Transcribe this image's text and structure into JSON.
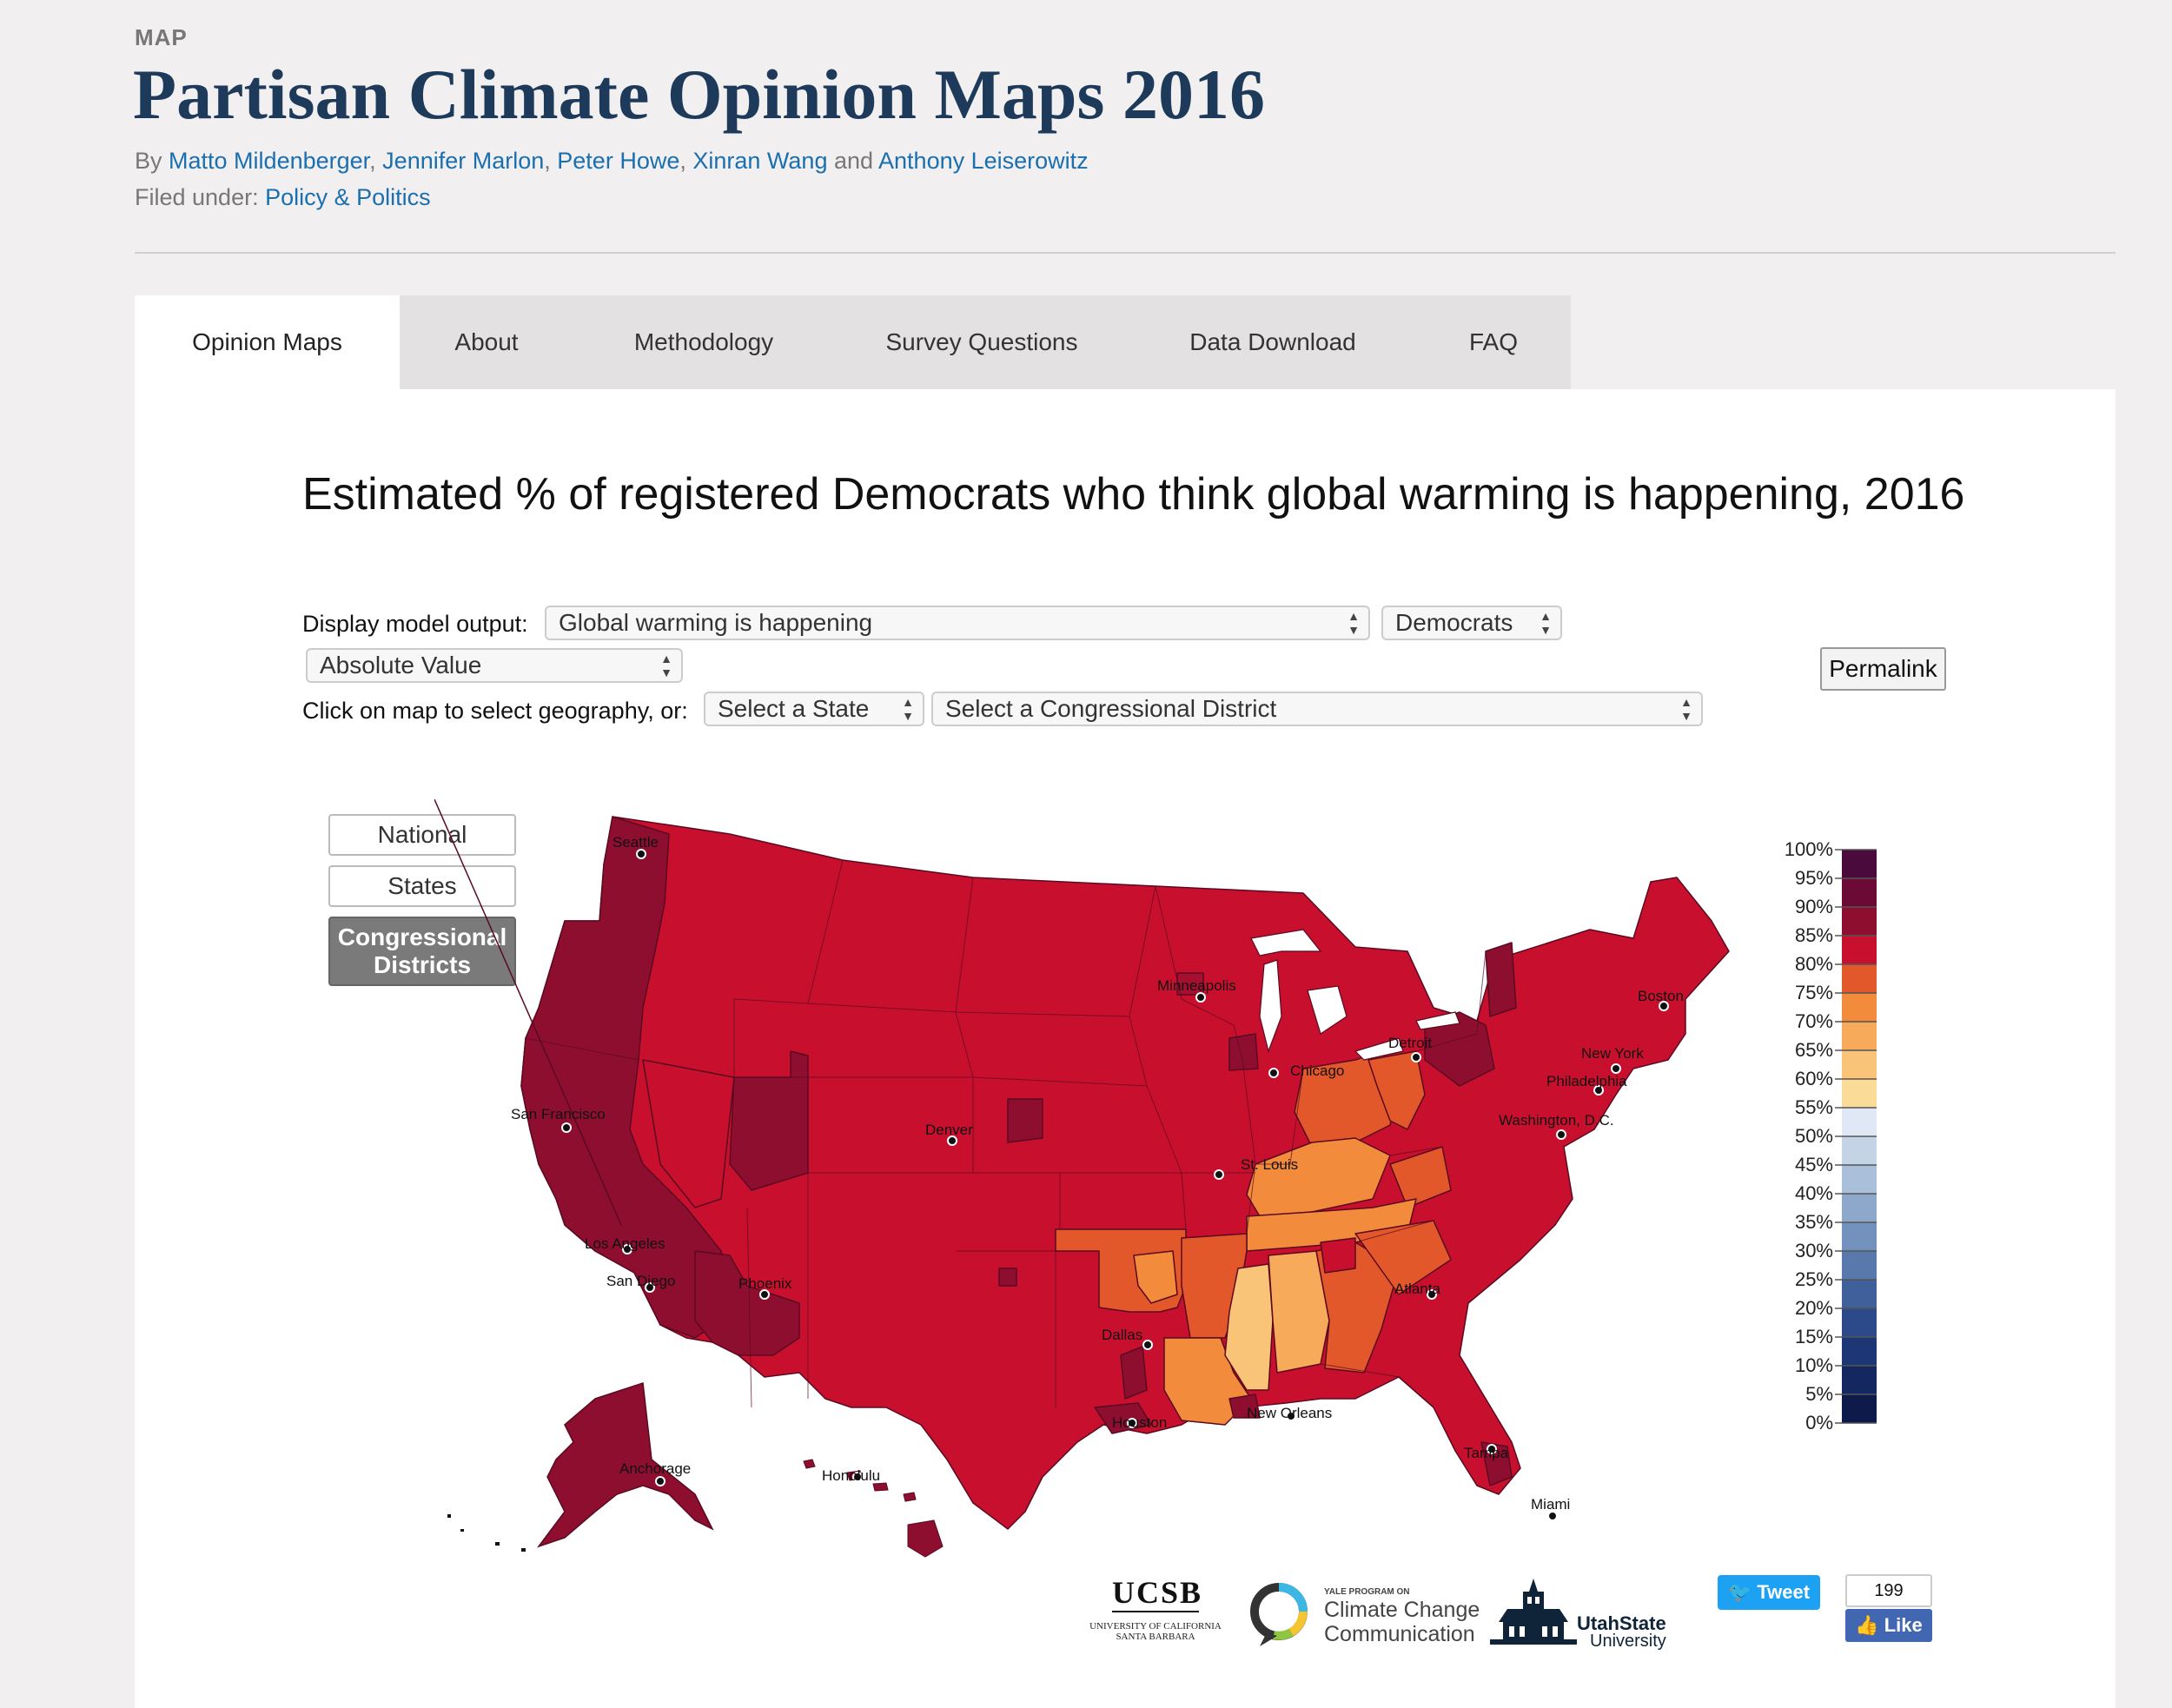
{
  "header": {
    "kicker": "MAP",
    "title": "Partisan Climate Opinion Maps 2016",
    "by_label": "By",
    "authors": [
      "Matto Mildenberger",
      "Jennifer Marlon",
      "Peter Howe",
      "Xinran Wang",
      "Anthony Leiserowitz"
    ],
    "filed_label": "Filed under:",
    "category": "Policy & Politics"
  },
  "tabs": [
    {
      "label": "Opinion Maps",
      "active": true
    },
    {
      "label": "About"
    },
    {
      "label": "Methodology"
    },
    {
      "label": "Survey Questions"
    },
    {
      "label": "Data Download"
    },
    {
      "label": "FAQ"
    }
  ],
  "map": {
    "title": "Estimated % of registered Democrats who think global warming is happening, 2016",
    "controls": {
      "display_label": "Display model output:",
      "question_value": "Global warming is happening",
      "party_value": "Democrats",
      "measure_value": "Absolute Value",
      "geo_label": "Click on map to select geography, or:",
      "state_placeholder": "Select a State",
      "district_placeholder": "Select a Congressional District",
      "permalink": "Permalink"
    },
    "geo_buttons": [
      {
        "label": "National",
        "active": false
      },
      {
        "label": "States",
        "active": false
      },
      {
        "label": "Congressional Districts",
        "active": true
      }
    ],
    "cities": [
      "Seattle",
      "Minneapolis",
      "Boston",
      "Detroit",
      "Chicago",
      "New York",
      "Philadelphia",
      "San Francisco",
      "Washington, D.C.",
      "Denver",
      "St. Louis",
      "Los Angeles",
      "San Diego",
      "Phoenix",
      "Atlanta",
      "Dallas",
      "Houston",
      "New Orleans",
      "Tampa",
      "Miami",
      "Anchorage",
      "Honolulu"
    ],
    "legend": {
      "ticks": [
        "100%",
        "95%",
        "90%",
        "85%",
        "80%",
        "75%",
        "70%",
        "65%",
        "60%",
        "55%",
        "50%",
        "45%",
        "40%",
        "35%",
        "30%",
        "25%",
        "20%",
        "15%",
        "10%",
        "5%",
        "0%"
      ],
      "colors": [
        "#4a0a3c",
        "#6b0a35",
        "#8e0e30",
        "#c8102e",
        "#e2582a",
        "#f28c3c",
        "#f7aa5a",
        "#f9c378",
        "#fbdb98",
        "#dfe8f4",
        "#c4d3e6",
        "#a9bfda",
        "#8ea8cc",
        "#7391bd",
        "#5979ad",
        "#40609c",
        "#2c4a89",
        "#1d3675",
        "#14275f",
        "#0d1a4a"
      ]
    },
    "colors": {
      "dark_red": "#8e0e30",
      "red": "#c8102e",
      "orange": "#e2582a",
      "light_orange": "#f28c3c",
      "peach": "#f7aa5a"
    }
  },
  "footer": {
    "ucsb": {
      "name": "UCSB",
      "sub1": "UNIVERSITY OF CALIFORNIA",
      "sub2": "SANTA BARBARA"
    },
    "yale": {
      "pre": "YALE PROGRAM ON",
      "line1": "Climate Change",
      "line2": "Communication"
    },
    "usu": {
      "line1": "UtahState",
      "line2": "University"
    },
    "tweet": "Tweet",
    "like_count": "199",
    "like": "Like"
  }
}
